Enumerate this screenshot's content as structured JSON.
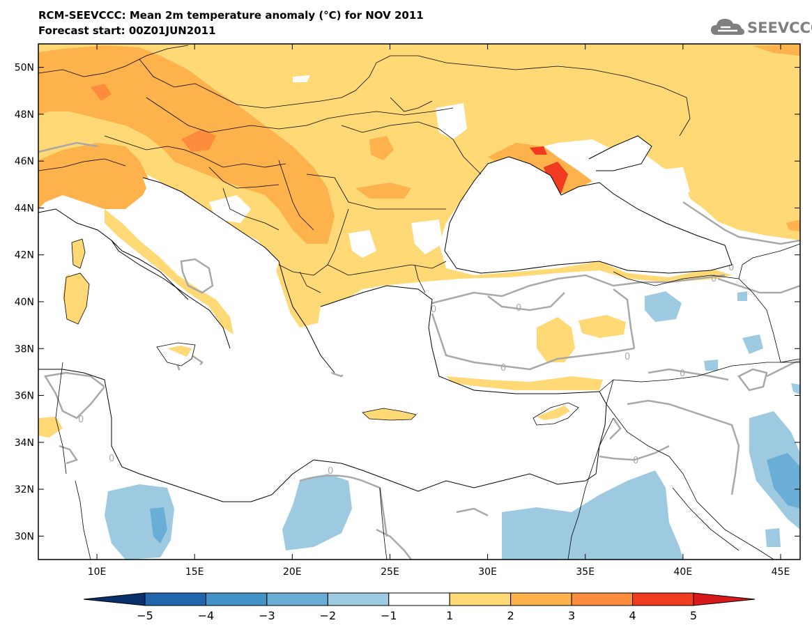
{
  "header": {
    "title": "RCM-SEEVCCC: Mean 2m temperature anomaly (°C) for NOV 2011",
    "subtitle": "Forecast start: 00Z01JUN2011"
  },
  "logo": {
    "text": "SEEVCCC",
    "icon": "cloud-icon",
    "color": "#7f7f7f"
  },
  "map": {
    "lon_range": [
      7,
      46
    ],
    "lat_range": [
      29,
      51
    ],
    "lat_ticks": [
      {
        "value": 50,
        "label": "50N"
      },
      {
        "value": 48,
        "label": "48N"
      },
      {
        "value": 46,
        "label": "46N"
      },
      {
        "value": 44,
        "label": "44N"
      },
      {
        "value": 42,
        "label": "42N"
      },
      {
        "value": 40,
        "label": "40N"
      },
      {
        "value": 38,
        "label": "38N"
      },
      {
        "value": 36,
        "label": "36N"
      },
      {
        "value": 34,
        "label": "34N"
      },
      {
        "value": 32,
        "label": "32N"
      },
      {
        "value": 30,
        "label": "30N"
      }
    ],
    "lon_ticks": [
      {
        "value": 10,
        "label": "10E"
      },
      {
        "value": 15,
        "label": "15E"
      },
      {
        "value": 20,
        "label": "20E"
      },
      {
        "value": 25,
        "label": "25E"
      },
      {
        "value": 30,
        "label": "30E"
      },
      {
        "value": 35,
        "label": "35E"
      },
      {
        "value": 40,
        "label": "40E"
      },
      {
        "value": 45,
        "label": "45E"
      }
    ],
    "contour_label": "0"
  },
  "colorbar": {
    "levels": [
      "−5",
      "−4",
      "−3",
      "−2",
      "−1",
      "1",
      "2",
      "3",
      "4",
      "5"
    ],
    "colors": [
      "#08306b",
      "#2166ac",
      "#4392c6",
      "#6aaed6",
      "#9ecae1",
      "#ffffff",
      "#fed976",
      "#feb24c",
      "#fd8d3c",
      "#f03b20",
      "#d7191c"
    ]
  }
}
